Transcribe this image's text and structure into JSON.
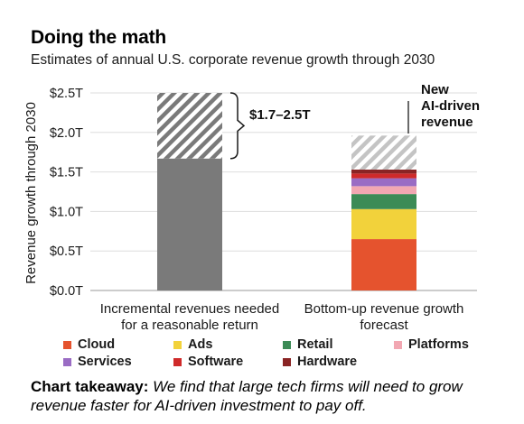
{
  "title": "Doing the math",
  "subtitle": "Estimates of annual U.S. corporate revenue growth through 2030",
  "takeaway": {
    "lead": "Chart takeaway:",
    "body": " We find that large tech firms will need to grow revenue faster for AI-driven investment to pay off."
  },
  "chart_data": {
    "type": "bar",
    "stacked": true,
    "ylabel": "Revenue growth through 2030",
    "ylim": [
      0,
      2.5
    ],
    "yticks": [
      "$0.0T",
      "$0.5T",
      "$1.0T",
      "$1.5T",
      "$2.0T",
      "$2.5T"
    ],
    "grid": true,
    "categories": [
      [
        "Incremental revenues needed",
        "for a reasonable return"
      ],
      [
        "Bottom-up revenue growth",
        "forecast"
      ]
    ],
    "bars": [
      {
        "segments": [
          {
            "value": 1.67,
            "color": "#7a7a7a",
            "pattern": "solid"
          },
          {
            "value": 0.83,
            "color": "#7a7a7a",
            "pattern": "hatch"
          }
        ]
      },
      {
        "segments": [
          {
            "name": "Cloud",
            "value": 0.65,
            "color": "#e5532e",
            "pattern": "solid"
          },
          {
            "name": "Ads",
            "value": 0.38,
            "color": "#f2d23b",
            "pattern": "solid"
          },
          {
            "name": "Retail",
            "value": 0.19,
            "color": "#3c8b56",
            "pattern": "solid"
          },
          {
            "name": "Platforms",
            "value": 0.1,
            "color": "#f2a7b2",
            "pattern": "solid"
          },
          {
            "name": "Services",
            "value": 0.1,
            "color": "#9a6cc4",
            "pattern": "solid"
          },
          {
            "name": "Software",
            "value": 0.06,
            "color": "#cf2a2a",
            "pattern": "solid"
          },
          {
            "name": "Hardware",
            "value": 0.05,
            "color": "#8a2424",
            "pattern": "solid"
          },
          {
            "name": "New AI-driven revenue",
            "value": 0.43,
            "color": "#b8b8b8",
            "pattern": "hatch"
          }
        ]
      }
    ],
    "annotations": [
      {
        "text": "$1.7–2.5T"
      },
      {
        "text": "New AI-driven revenue",
        "lines": [
          "New",
          "AI-driven",
          "revenue"
        ]
      }
    ],
    "legend": [
      {
        "name": "Cloud",
        "color": "#e5532e"
      },
      {
        "name": "Ads",
        "color": "#f2d23b"
      },
      {
        "name": "Retail",
        "color": "#3c8b56"
      },
      {
        "name": "Platforms",
        "color": "#f2a7b2"
      },
      {
        "name": "Services",
        "color": "#9a6cc4"
      },
      {
        "name": "Software",
        "color": "#cf2a2a"
      },
      {
        "name": "Hardware",
        "color": "#8a2424"
      }
    ],
    "legend_position": "bottom"
  }
}
